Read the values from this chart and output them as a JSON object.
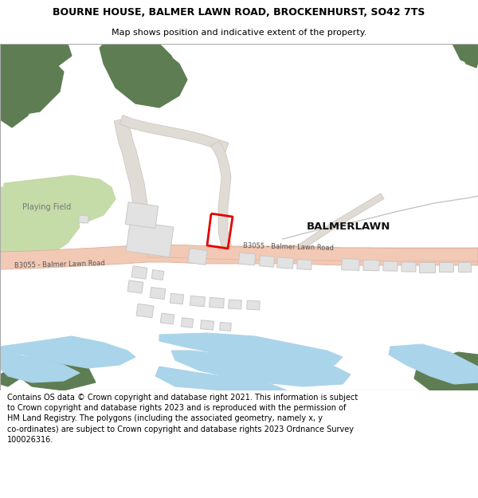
{
  "title": "BOURNE HOUSE, BALMER LAWN ROAD, BROCKENHURST, SO42 7TS",
  "subtitle": "Map shows position and indicative extent of the property.",
  "footer": "Contains OS data © Crown copyright and database right 2021. This information is subject to Crown copyright and database rights 2023 and is reproduced with the permission of HM Land Registry. The polygons (including the associated geometry, namely x, y co-ordinates) are subject to Crown copyright and database rights 2023 Ordnance Survey 100026316.",
  "bg_color": "#ffffff",
  "map_bg": "#f7f7f3",
  "road_color": "#f2c9b5",
  "road_outline": "#deb09a",
  "green_dark": "#5e7d52",
  "green_light": "#c5dba8",
  "water_color": "#aad4ea",
  "building_color": "#e2e2e2",
  "building_edge": "#c8c8c8",
  "plot_color": "#e60000",
  "road_label_color": "#555555",
  "place_label_color": "#111111",
  "grey_road_color": "#e0dbd5",
  "grey_road_edge": "#c8c4be",
  "title_fontsize": 9.0,
  "subtitle_fontsize": 8.0,
  "footer_fontsize": 7.0
}
